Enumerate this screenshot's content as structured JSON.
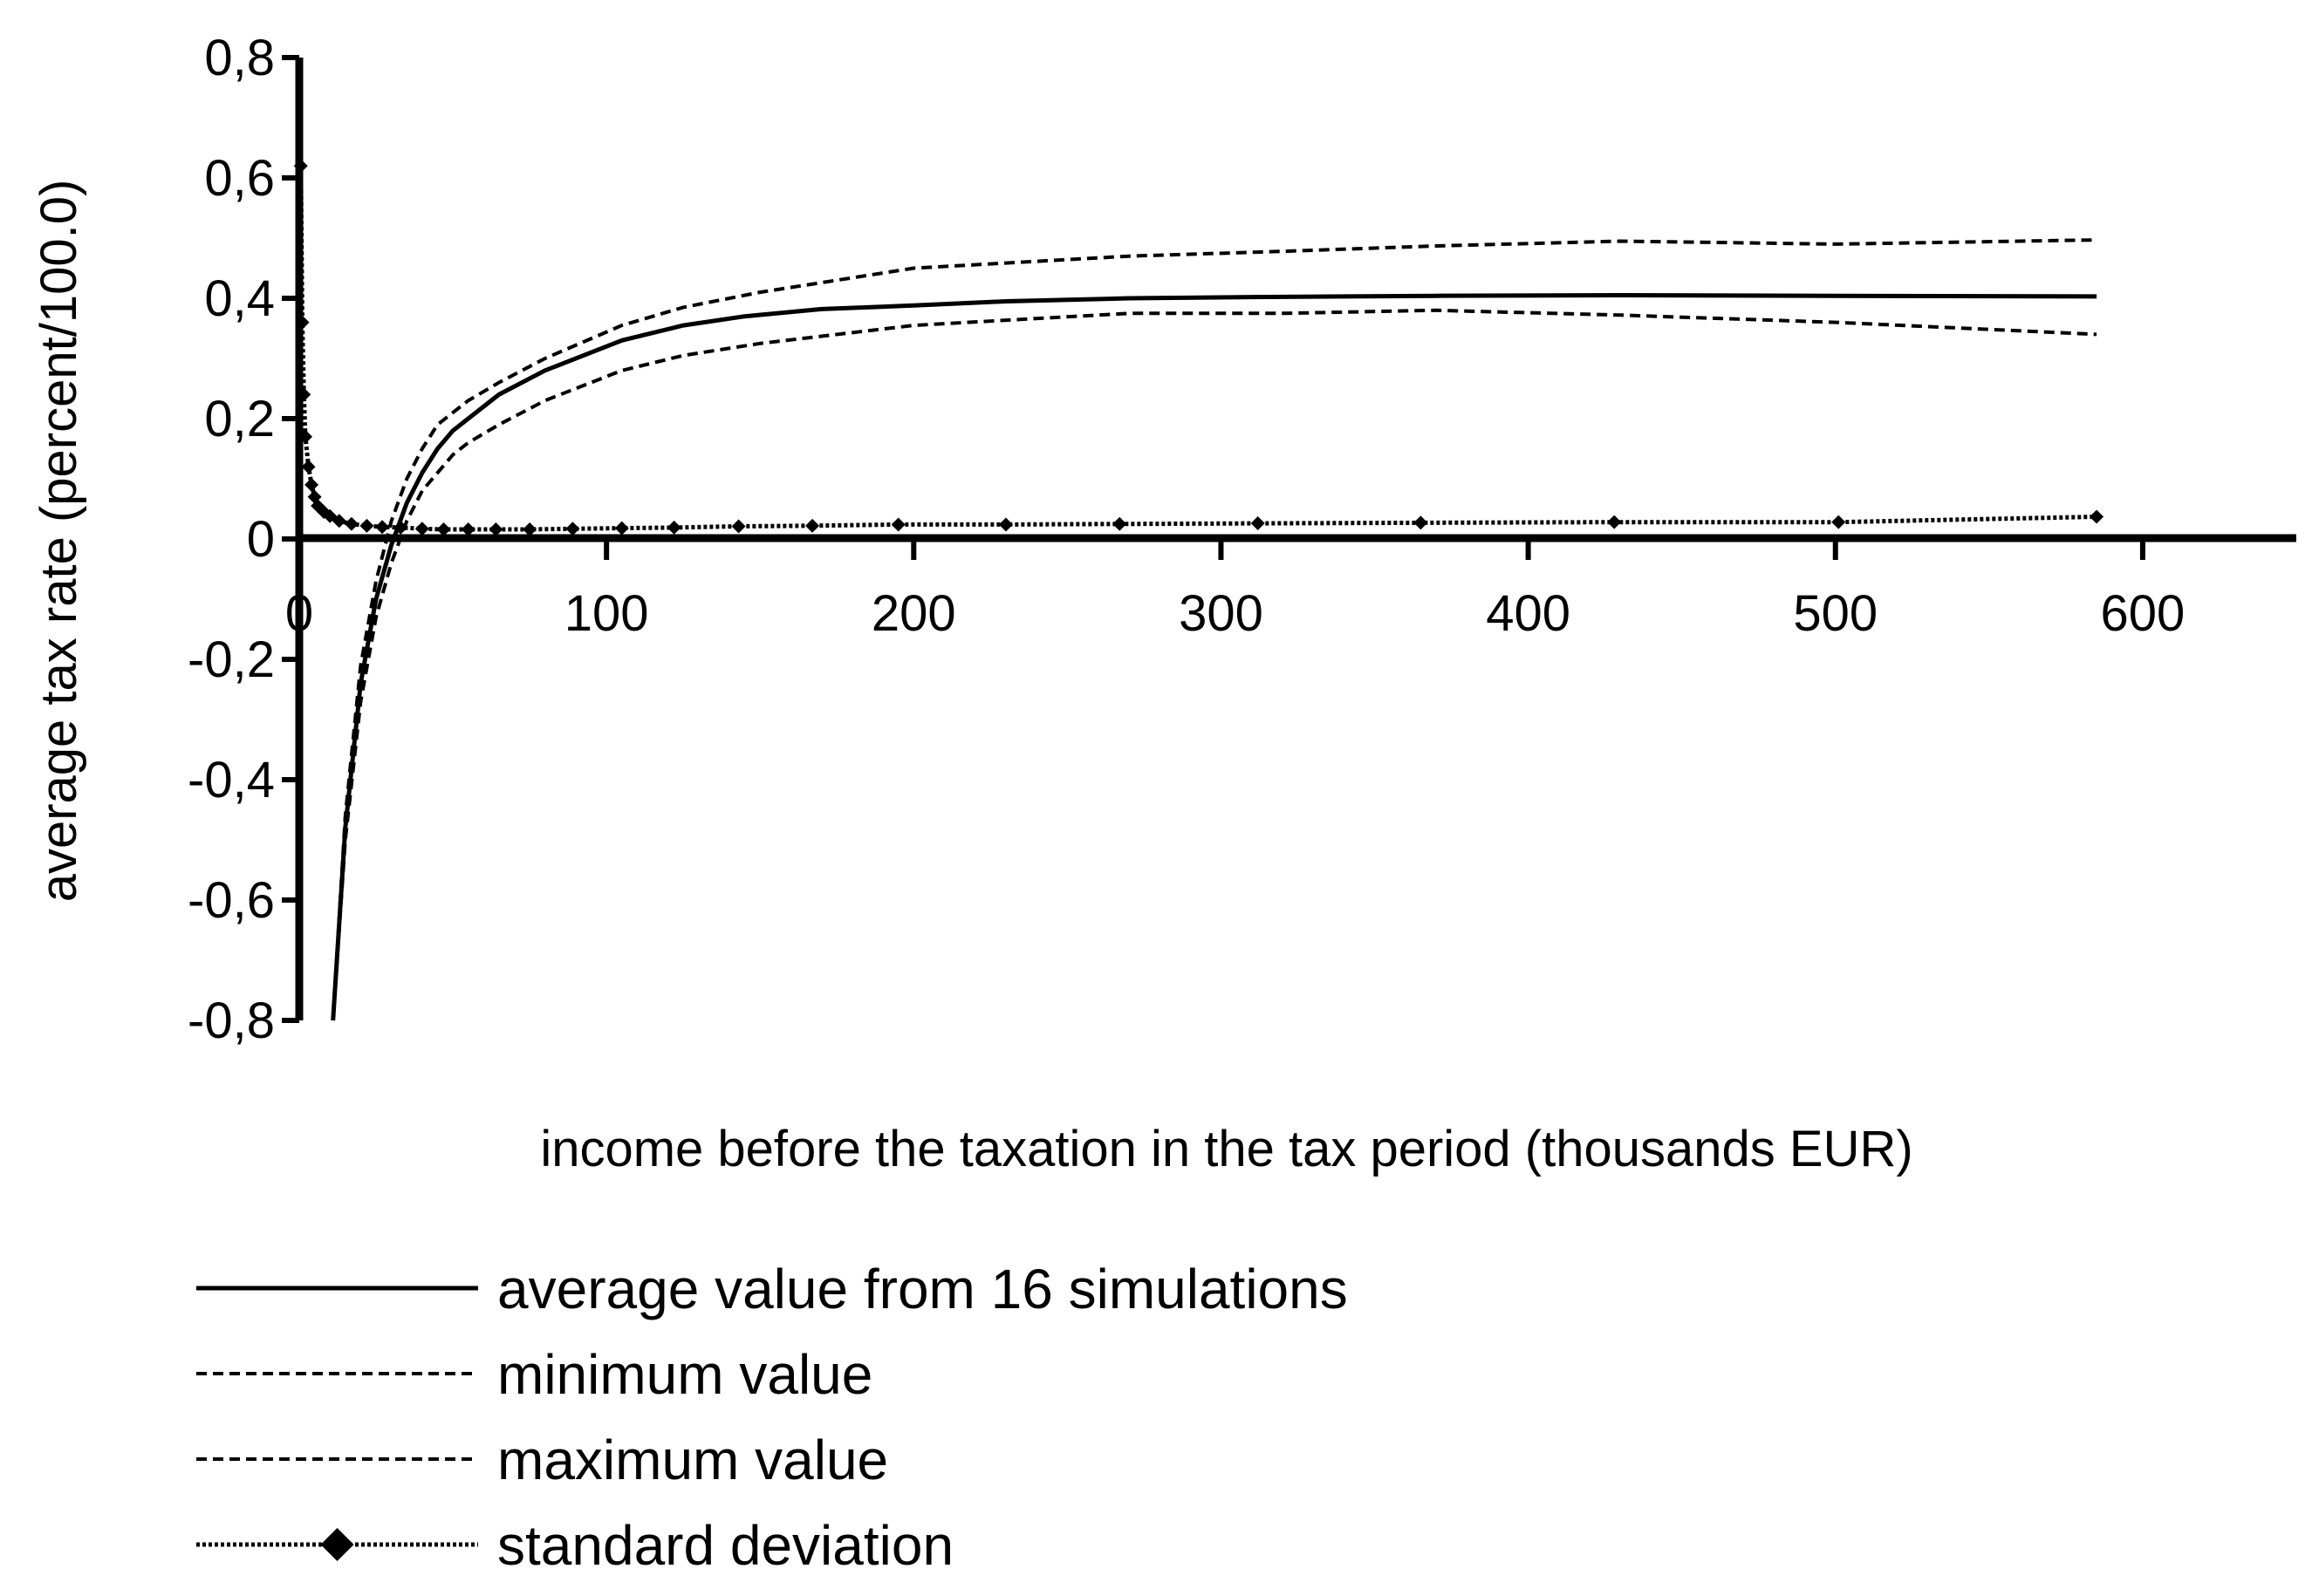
{
  "chart_data": {
    "type": "line",
    "xlabel": "income before the taxation in the tax period (thousands EUR)",
    "ylabel": "average tax rate (percent/100.0)",
    "xlim": [
      0,
      650
    ],
    "ylim": [
      -0.8,
      0.8
    ],
    "x_ticks": [
      0,
      100,
      200,
      300,
      400,
      500,
      600
    ],
    "x_tick_labels": [
      "0",
      "100",
      "200",
      "300",
      "400",
      "500",
      "600"
    ],
    "y_ticks": [
      -0.8,
      -0.6,
      -0.4,
      -0.2,
      0,
      0.2,
      0.4,
      0.6,
      0.8
    ],
    "y_tick_labels": [
      "-0,8",
      "-0,6",
      "-0,4",
      "-0,2",
      "0",
      "0,2",
      "0,4",
      "0,6",
      "0,8"
    ],
    "grid": false,
    "legend_position": "bottom",
    "series": [
      {
        "name": "average value from 16 simulations",
        "style": "solid",
        "color": "#000000",
        "x": [
          11,
          15,
          20,
          25,
          30,
          35,
          40,
          45,
          50,
          55,
          65,
          80,
          105,
          125,
          145,
          170,
          200,
          230,
          270,
          310,
          370,
          430,
          500,
          585
        ],
        "y": [
          -0.8,
          -0.48,
          -0.24,
          -0.1,
          -0.01,
          0.06,
          0.11,
          0.15,
          0.18,
          0.2,
          0.24,
          0.28,
          0.33,
          0.355,
          0.37,
          0.382,
          0.388,
          0.395,
          0.4,
          0.402,
          0.404,
          0.405,
          0.404,
          0.403
        ]
      },
      {
        "name": "minimum value",
        "style": "dashed",
        "color": "#000000",
        "x": [
          11,
          15,
          20,
          25,
          30,
          35,
          40,
          45,
          50,
          55,
          65,
          80,
          105,
          125,
          150,
          200,
          270,
          320,
          370,
          430,
          500,
          585
        ],
        "y": [
          -0.8,
          -0.5,
          -0.27,
          -0.13,
          -0.04,
          0.03,
          0.08,
          0.11,
          0.14,
          0.16,
          0.19,
          0.23,
          0.28,
          0.305,
          0.325,
          0.355,
          0.375,
          0.375,
          0.38,
          0.372,
          0.36,
          0.34
        ]
      },
      {
        "name": "maximum value",
        "style": "dashed",
        "color": "#000000",
        "x": [
          11,
          15,
          20,
          25,
          30,
          35,
          40,
          45,
          50,
          55,
          65,
          80,
          105,
          125,
          150,
          200,
          270,
          320,
          370,
          430,
          500,
          585
        ],
        "y": [
          -0.8,
          -0.46,
          -0.21,
          -0.07,
          0.03,
          0.1,
          0.15,
          0.19,
          0.21,
          0.23,
          0.26,
          0.3,
          0.355,
          0.385,
          0.41,
          0.45,
          0.47,
          0.478,
          0.487,
          0.495,
          0.49,
          0.497
        ]
      },
      {
        "name": "standard deviation",
        "style": "dotted-diamond",
        "color": "#000000",
        "x": [
          0.5,
          1,
          1.5,
          2,
          3,
          4,
          5,
          6,
          8,
          10,
          13,
          17,
          22,
          27,
          33,
          40,
          47,
          55,
          64,
          75,
          89,
          105,
          122,
          143,
          167,
          195,
          230,
          267,
          312,
          365,
          428,
          501,
          585
        ],
        "y": [
          0.62,
          0.36,
          0.24,
          0.17,
          0.12,
          0.09,
          0.07,
          0.055,
          0.045,
          0.038,
          0.03,
          0.025,
          0.022,
          0.02,
          0.019,
          0.017,
          0.016,
          0.016,
          0.016,
          0.016,
          0.017,
          0.018,
          0.019,
          0.021,
          0.022,
          0.024,
          0.024,
          0.025,
          0.026,
          0.027,
          0.028,
          0.028,
          0.037
        ]
      }
    ]
  }
}
